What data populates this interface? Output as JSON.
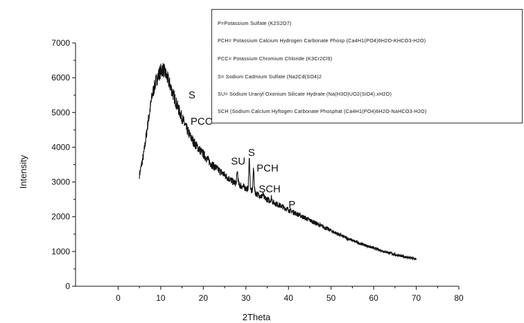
{
  "chart_data": {
    "type": "line",
    "title": "",
    "xlabel": "2Theta",
    "ylabel": "Intensity",
    "xlim": [
      -10,
      80
    ],
    "ylim": [
      0,
      7000
    ],
    "x_ticks": [
      0,
      10,
      20,
      30,
      40,
      50,
      60,
      70,
      80
    ],
    "y_ticks": [
      0,
      1000,
      2000,
      3000,
      4000,
      5000,
      6000,
      7000
    ],
    "grid": false,
    "legend_placement": "top-right",
    "series": [
      {
        "x": [
          5,
          6,
          7,
          8,
          9,
          10,
          10.5,
          11,
          12,
          13,
          14,
          15,
          16,
          17,
          18,
          19,
          20,
          21,
          22,
          23,
          24,
          25,
          26,
          27,
          28,
          29,
          30,
          31,
          32,
          33,
          34,
          35,
          36,
          37,
          38,
          39,
          40,
          42,
          44,
          46,
          48,
          50,
          52,
          54,
          56,
          58,
          60,
          62,
          64,
          66,
          68,
          70
        ],
        "y": [
          3200,
          3800,
          4700,
          5500,
          5950,
          6200,
          6250,
          6150,
          5850,
          5500,
          5150,
          4850,
          4550,
          4300,
          4100,
          3950,
          3800,
          3650,
          3500,
          3400,
          3300,
          3200,
          3100,
          3000,
          2950,
          2880,
          2820,
          2760,
          2700,
          2630,
          2560,
          2500,
          2440,
          2380,
          2320,
          2260,
          2200,
          2080,
          1960,
          1840,
          1720,
          1600,
          1480,
          1370,
          1270,
          1180,
          1100,
          1020,
          950,
          880,
          830,
          780
        ]
      }
    ],
    "peaks": [
      {
        "x": 28,
        "y": 3300
      },
      {
        "x": 30.8,
        "y": 3650
      },
      {
        "x": 31.8,
        "y": 3350
      },
      {
        "x": 34,
        "y": 2650
      },
      {
        "x": 36,
        "y": 2550
      },
      {
        "x": 38.5,
        "y": 2300
      },
      {
        "x": 40.5,
        "y": 2100
      },
      {
        "x": 43,
        "y": 1900
      },
      {
        "x": 45,
        "y": 1800
      },
      {
        "x": 49.5,
        "y": 1500
      }
    ],
    "annotations": [
      {
        "text": "S",
        "x": 16.5,
        "y": 5400
      },
      {
        "text": "PCC",
        "x": 17,
        "y": 4650
      },
      {
        "text": "SU",
        "x": 26.5,
        "y": 3500
      },
      {
        "text": "S",
        "x": 30.5,
        "y": 3750
      },
      {
        "text": "PCH",
        "x": 32.5,
        "y": 3300
      },
      {
        "text": "SCH",
        "x": 33,
        "y": 2700
      },
      {
        "text": "P",
        "x": 40,
        "y": 2250
      }
    ],
    "legend": [
      "P=Potassium Sulfate (K2S2O7)",
      "PCH= Potassium Calcium Hydrogen Carbonate Phosp (Ca4H1(PO4)6H2O-KHCO3-H2O)",
      "PCC= Potassium Chromium Chloride (K3Cr2Cl9)",
      "S= Sodium Cadmium Sulfate (Na2Cd(SO4)2",
      "SU= Sodium Uranyl Oxonium Silicate Hydrate (Na(H3O)UO2(SiO4).xH2O)",
      "SCH (Sodium Calcium Hyftogen Carbonate Phosphat (Ca4H1(PO4)6H2O-NaHCO3-H2O)"
    ]
  }
}
